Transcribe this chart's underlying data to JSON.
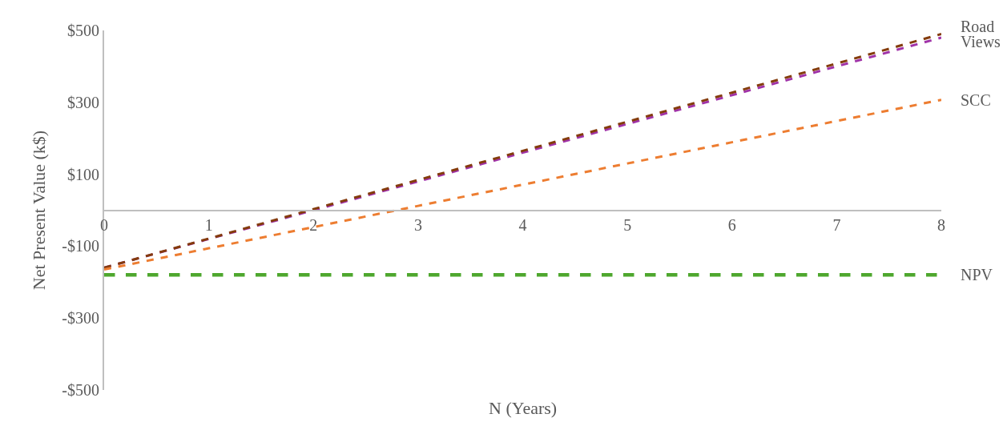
{
  "chart_data": {
    "type": "line",
    "xlabel": "N (Years)",
    "ylabel": "Net Present Value (k$)",
    "x": [
      0,
      1,
      2,
      3,
      4,
      5,
      6,
      7,
      8
    ],
    "series": [
      {
        "name": "Road",
        "color": "#a033a8",
        "line_style": "dashed",
        "values": [
          -160,
          -80,
          0,
          80,
          160,
          240,
          320,
          400,
          480
        ]
      },
      {
        "name": "Views",
        "color": "#843c0c",
        "line_style": "dashed",
        "values": [
          -160,
          -79,
          3,
          84,
          165,
          246,
          327,
          408,
          490
        ]
      },
      {
        "name": "SCC",
        "color": "#ed7d31",
        "line_style": "dashed",
        "values": [
          -165,
          -106,
          -47,
          12,
          71,
          130,
          189,
          248,
          307
        ]
      },
      {
        "name": "NPV",
        "color": "#4ea72e",
        "line_style": "dashed",
        "values": [
          -180,
          -180,
          -180,
          -180,
          -180,
          -180,
          -180,
          -180,
          -180
        ]
      }
    ],
    "xlim": [
      0,
      8
    ],
    "xticks": [
      0,
      1,
      2,
      3,
      4,
      5,
      6,
      7,
      8
    ],
    "ylim": [
      -500,
      500
    ],
    "yticks": [
      {
        "value": -500,
        "label": "-$500"
      },
      {
        "value": -300,
        "label": "-$300"
      },
      {
        "value": -100,
        "label": "-$100"
      },
      {
        "value": 100,
        "label": "$100"
      },
      {
        "value": 300,
        "label": "$300"
      },
      {
        "value": 500,
        "label": "$500"
      }
    ],
    "legend": false,
    "marker": "none"
  }
}
